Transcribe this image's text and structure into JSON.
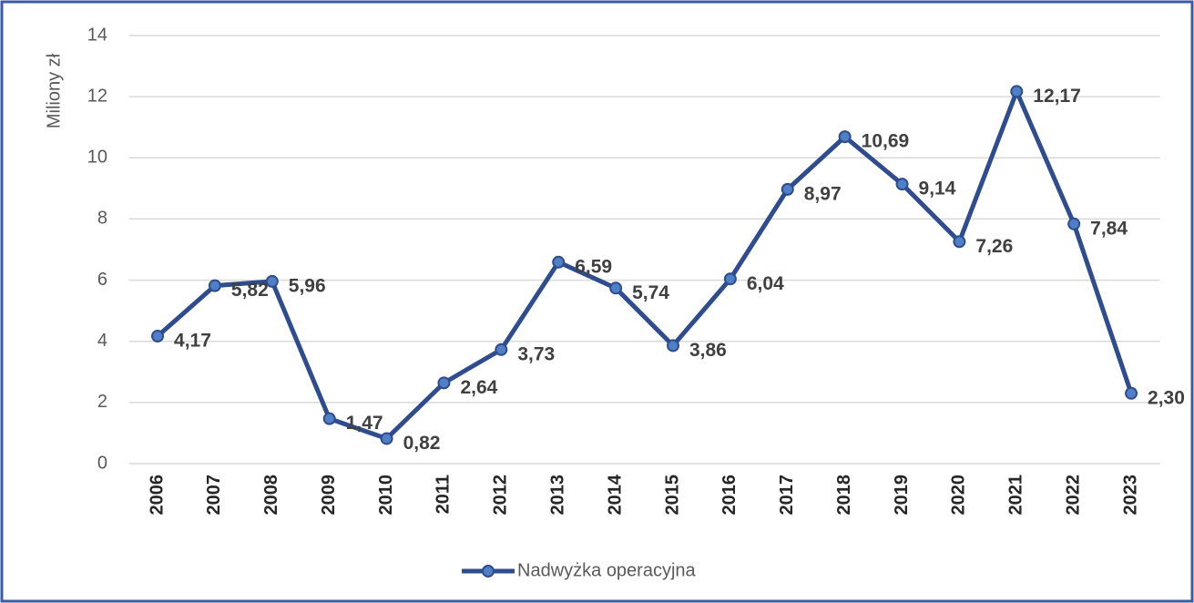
{
  "chart_data": {
    "type": "line",
    "y_label": "Miliony zł",
    "categories": [
      "2006",
      "2007",
      "2008",
      "2009",
      "2010",
      "2011",
      "2012",
      "2013",
      "2014",
      "2015",
      "2016",
      "2017",
      "2018",
      "2019",
      "2020",
      "2021",
      "2022",
      "2023"
    ],
    "series": [
      {
        "name": "Nadwyżka operacyjna",
        "color": "#2f4d8e",
        "values": [
          4.17,
          5.82,
          5.96,
          1.47,
          0.82,
          2.64,
          3.73,
          6.59,
          5.74,
          3.86,
          6.04,
          8.97,
          10.69,
          9.14,
          7.26,
          12.17,
          7.84,
          2.3
        ],
        "value_labels": [
          "4,17",
          "5,82",
          "5,96",
          "1,47",
          "0,82",
          "2,64",
          "3,73",
          "6,59",
          "5,74",
          "3,86",
          "6,04",
          "8,97",
          "10,69",
          "9,14",
          "7,26",
          "12,17",
          "7,84",
          "2,30"
        ]
      }
    ],
    "ylim": [
      0,
      14
    ],
    "yticks": [
      0,
      2,
      4,
      6,
      8,
      10,
      12,
      14
    ],
    "grid": true,
    "legend": "bottom"
  }
}
